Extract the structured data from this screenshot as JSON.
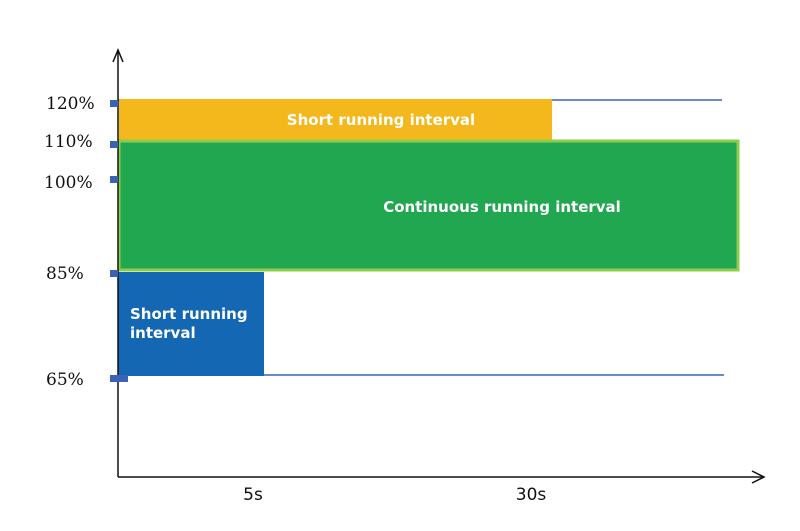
{
  "y_ticks": [
    "120%",
    "110%",
    "100%",
    "85%",
    "65%"
  ],
  "x_ticks": [
    "5s",
    "30s"
  ],
  "regions": {
    "short_top": {
      "label": "Short running interval",
      "color": "#f4b81c"
    },
    "continuous": {
      "label": "Continuous running interval",
      "color": "#21a750",
      "border": "#8dcc4c"
    },
    "short_bottom": {
      "label_line1": "Short running",
      "label_line2": "interval",
      "color": "#1467b3"
    }
  },
  "colors": {
    "axis": "#111111",
    "tick_marker": "#3a63b5",
    "limit_line": "#3a63b5"
  }
}
